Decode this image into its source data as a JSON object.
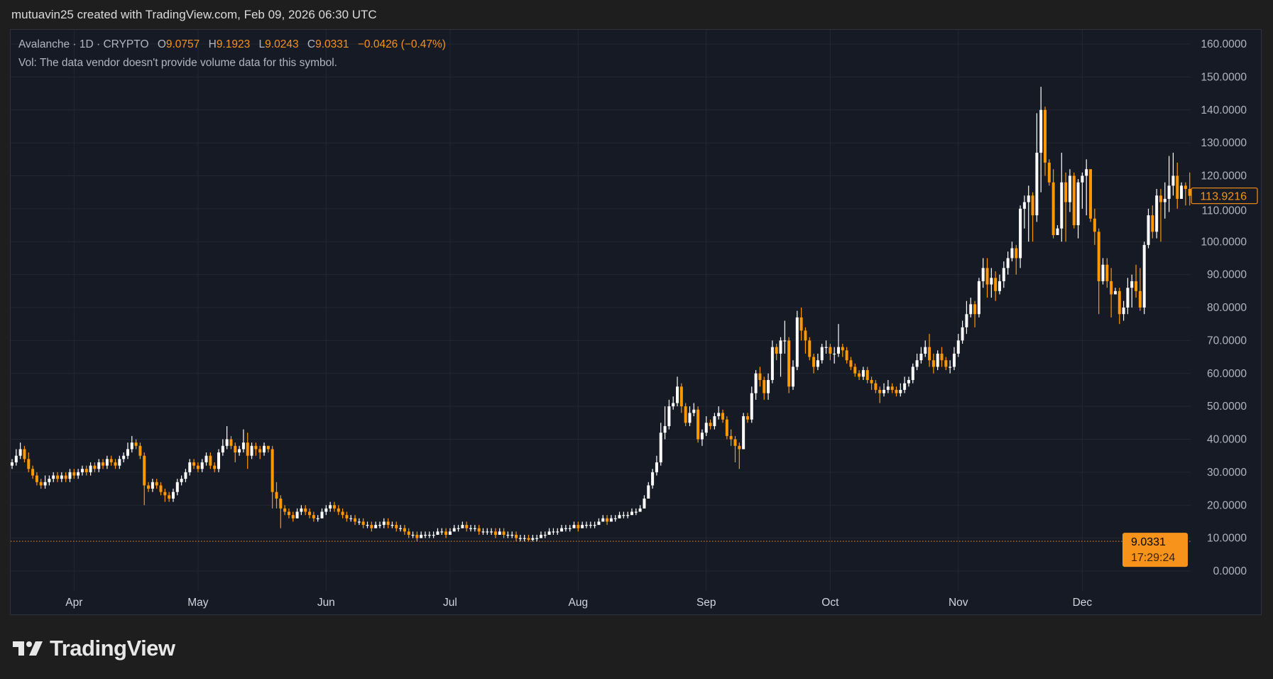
{
  "header": {
    "attribution": "mutuavin25 created with TradingView.com, Feb 09, 2026 06:30 UTC"
  },
  "legend": {
    "symbol_line": "Avalanche · 1D · CRYPTO",
    "open_label": "O",
    "open": "9.0757",
    "high_label": "H",
    "high": "9.1923",
    "low_label": "L",
    "low": "9.0243",
    "close_label": "C",
    "close": "9.0331",
    "change": "−0.0426 (−0.47%)",
    "volume_note": "Vol: The data vendor doesn't provide volume data for this symbol."
  },
  "price_tags": {
    "last_visible_close": "113.9216",
    "last_price": "9.0331",
    "countdown": "17:29:24"
  },
  "brand": {
    "name": "TradingView"
  },
  "colors": {
    "up": "#ffffff",
    "down": "#ff9800",
    "accent": "#f7931a",
    "background": "#161a25",
    "grid": "#232733"
  },
  "chart_data": {
    "type": "candlestick",
    "title": "",
    "ylim": [
      0,
      160
    ],
    "y_ticks": [
      "0.0000",
      "10.0000",
      "20.0000",
      "30.0000",
      "40.0000",
      "50.0000",
      "60.0000",
      "70.0000",
      "80.0000",
      "90.0000",
      "100.0000",
      "110.0000",
      "120.0000",
      "130.0000",
      "140.0000",
      "150.0000",
      "160.0000"
    ],
    "x_ticks": [
      "Apr",
      "May",
      "Jun",
      "Jul",
      "Aug",
      "Sep",
      "Oct",
      "Nov",
      "Dec"
    ],
    "grid": true,
    "first_open": 32,
    "last_price_line": 9.0331,
    "close": [
      33,
      35,
      37,
      34,
      31,
      29,
      27,
      26,
      27,
      28,
      29,
      28,
      29,
      28,
      30,
      29,
      30,
      31,
      30,
      32,
      31,
      33,
      32,
      34,
      33,
      32,
      34,
      35,
      37,
      39,
      38,
      35,
      26,
      25,
      27,
      26,
      24,
      23,
      22,
      24,
      27,
      28,
      30,
      33,
      32,
      31,
      33,
      35,
      32,
      31,
      36,
      38,
      40,
      38,
      36,
      37,
      39,
      35,
      38,
      37,
      36,
      38,
      37,
      24,
      22,
      19,
      18,
      17,
      16,
      18,
      19,
      18,
      17,
      16,
      16,
      18,
      19,
      20,
      19,
      18,
      17,
      16,
      16,
      15,
      15,
      14,
      14,
      13,
      14,
      14,
      15,
      14,
      14,
      13,
      13,
      12,
      11,
      11,
      10,
      11,
      11,
      11,
      11,
      12,
      12,
      11,
      12,
      13,
      13,
      14,
      13,
      13,
      13,
      12,
      12,
      12,
      12,
      11,
      12,
      11,
      11,
      11,
      10,
      10,
      10,
      9.5,
      10,
      10,
      11,
      11,
      12,
      12,
      12,
      13,
      13,
      13,
      14,
      13,
      14,
      14,
      14,
      14,
      15,
      16,
      15,
      16,
      16,
      17,
      17,
      17,
      18,
      18,
      19,
      22,
      26,
      30,
      33,
      42,
      44,
      50,
      51,
      56,
      50,
      45,
      48,
      49,
      40,
      42,
      45,
      44,
      47,
      48,
      46,
      41,
      40,
      38,
      37,
      47,
      46,
      54,
      60,
      58,
      54,
      58,
      68,
      66,
      70,
      70,
      56,
      62,
      77,
      73,
      70,
      65,
      62,
      64,
      68,
      68,
      66,
      66,
      68,
      67,
      64,
      62,
      60,
      59,
      61,
      58,
      57,
      55,
      54,
      55,
      56,
      55,
      54,
      55,
      57,
      58,
      62,
      64,
      66,
      68,
      64,
      62,
      66,
      64,
      62,
      62,
      66,
      70,
      74,
      78,
      81,
      78,
      88,
      92,
      87,
      89,
      85,
      88,
      92,
      95,
      98,
      95,
      110,
      112,
      114,
      108,
      127,
      140,
      124,
      118,
      102,
      104,
      118,
      112,
      120,
      105,
      118,
      120,
      122,
      107,
      103,
      88,
      93,
      88,
      84,
      85,
      78,
      80,
      86,
      88,
      85,
      80,
      99,
      108,
      103,
      114,
      112,
      113,
      117,
      120,
      113,
      117,
      116,
      113.9216
    ],
    "high": [
      34,
      37,
      39,
      38,
      36,
      32,
      30,
      28,
      29,
      29,
      30,
      30,
      30,
      30,
      31,
      31,
      31,
      32,
      32,
      33,
      33,
      34,
      34,
      35,
      35,
      34,
      35,
      36,
      39,
      41,
      40,
      39,
      36,
      27,
      28,
      28,
      27,
      25,
      24,
      25,
      28,
      29,
      31,
      34,
      34,
      33,
      34,
      36,
      36,
      33,
      37,
      40,
      44,
      41,
      39,
      38,
      43,
      42,
      39,
      39,
      38,
      39,
      38,
      38,
      27,
      23,
      20,
      19,
      18,
      19,
      20,
      20,
      19,
      18,
      17,
      19,
      20,
      21,
      21,
      20,
      19,
      18,
      17,
      17,
      16,
      16,
      15,
      15,
      15,
      15,
      16,
      16,
      15,
      15,
      14,
      14,
      13,
      12,
      12,
      12,
      12,
      12,
      12,
      13,
      13,
      13,
      13,
      14,
      14,
      15,
      15,
      14,
      14,
      14,
      13,
      13,
      13,
      13,
      13,
      13,
      12,
      12,
      12,
      11,
      11,
      11,
      11,
      11,
      12,
      12,
      13,
      13,
      13,
      14,
      14,
      14,
      15,
      15,
      15,
      15,
      15,
      15,
      16,
      17,
      17,
      17,
      17,
      18,
      18,
      18,
      19,
      19,
      20,
      23,
      27,
      31,
      35,
      45,
      50,
      52,
      53,
      59,
      57,
      51,
      50,
      51,
      50,
      43,
      47,
      46,
      48,
      50,
      49,
      47,
      43,
      41,
      39,
      48,
      48,
      56,
      61,
      62,
      59,
      60,
      70,
      69,
      71,
      76,
      71,
      64,
      79,
      80,
      74,
      71,
      66,
      66,
      69,
      70,
      69,
      68,
      75,
      69,
      68,
      65,
      63,
      61,
      62,
      62,
      59,
      58,
      56,
      57,
      58,
      57,
      56,
      57,
      59,
      59,
      63,
      66,
      68,
      70,
      72,
      66,
      67,
      68,
      65,
      64,
      68,
      72,
      76,
      82,
      83,
      82,
      89,
      95,
      95,
      92,
      91,
      90,
      94,
      97,
      100,
      99,
      111,
      114,
      117,
      115,
      139,
      147,
      141,
      125,
      122,
      105,
      127,
      121,
      122,
      121,
      119,
      121,
      125,
      122,
      110,
      104,
      95,
      95,
      92,
      86,
      86,
      82,
      89,
      90,
      93,
      92,
      100,
      110,
      111,
      116,
      116,
      118,
      126,
      127,
      124,
      118,
      118,
      121
    ],
    "low": [
      31,
      32,
      34,
      33,
      30,
      28,
      26,
      25,
      25,
      26,
      27,
      27,
      27,
      27,
      27,
      28,
      28,
      29,
      29,
      29,
      30,
      30,
      31,
      31,
      32,
      31,
      31,
      33,
      34,
      36,
      37,
      34,
      20,
      24,
      24,
      25,
      23,
      21,
      21,
      21,
      23,
      26,
      27,
      29,
      31,
      30,
      30,
      32,
      31,
      30,
      30,
      35,
      37,
      37,
      33,
      35,
      36,
      31,
      34,
      35,
      34,
      35,
      36,
      19,
      19,
      13,
      17,
      16,
      15,
      16,
      17,
      17,
      16,
      15,
      15,
      16,
      17,
      18,
      18,
      17,
      16,
      15,
      15,
      14,
      14,
      13,
      13,
      12,
      13,
      13,
      13,
      13,
      13,
      12,
      12,
      11,
      10,
      10,
      9,
      10,
      10,
      10,
      10,
      11,
      11,
      10,
      11,
      12,
      12,
      13,
      12,
      12,
      12,
      11,
      11,
      11,
      11,
      10,
      11,
      10,
      10,
      10,
      9,
      9,
      9,
      9,
      9,
      9,
      10,
      10,
      11,
      11,
      11,
      12,
      12,
      12,
      13,
      12,
      13,
      13,
      13,
      13,
      14,
      15,
      14,
      15,
      15,
      16,
      16,
      16,
      17,
      17,
      18,
      19,
      22,
      25,
      29,
      32,
      40,
      43,
      49,
      50,
      48,
      44,
      44,
      47,
      39,
      38,
      41,
      43,
      43,
      46,
      45,
      40,
      38,
      33,
      31,
      37,
      45,
      45,
      52,
      56,
      52,
      52,
      57,
      64,
      59,
      66,
      54,
      55,
      61,
      70,
      66,
      64,
      60,
      61,
      63,
      66,
      64,
      63,
      65,
      65,
      63,
      61,
      59,
      58,
      58,
      57,
      55,
      54,
      51,
      53,
      54,
      54,
      53,
      53,
      54,
      56,
      57,
      61,
      63,
      65,
      62,
      60,
      61,
      62,
      61,
      60,
      61,
      65,
      69,
      72,
      77,
      74,
      77,
      86,
      83,
      83,
      82,
      84,
      86,
      90,
      94,
      90,
      92,
      104,
      100,
      100,
      106,
      115,
      120,
      117,
      101,
      103,
      100,
      100,
      109,
      104,
      101,
      110,
      108,
      106,
      99,
      78,
      87,
      86,
      77,
      84,
      75,
      76,
      78,
      80,
      83,
      79,
      78,
      98,
      101,
      101,
      100,
      107,
      109,
      114,
      110,
      113,
      111,
      111
    ]
  }
}
